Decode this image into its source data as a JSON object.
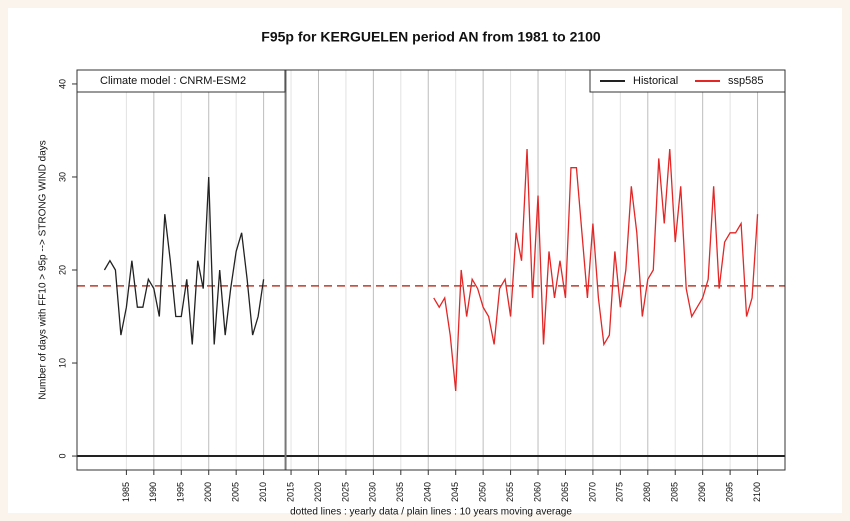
{
  "chart_data": {
    "type": "line",
    "title": "F95p for KERGUELEN period AN from 1981 to 2100",
    "annotation": "Climate model :  CNRM-ESM2",
    "x_label": "dotted lines : yearly data   /   plain lines : 10 years moving average",
    "y_label": "Number of days with FF10 > 95p --> STRONG WIND days",
    "xlim": [
      1976,
      2105
    ],
    "ylim": [
      -1.5,
      41.5
    ],
    "xticks": [
      1985,
      1990,
      1995,
      2000,
      2005,
      2010,
      2015,
      2020,
      2025,
      2030,
      2035,
      2040,
      2045,
      2050,
      2055,
      2060,
      2065,
      2070,
      2075,
      2080,
      2085,
      2090,
      2095,
      2100
    ],
    "yticks": [
      0,
      10,
      20,
      30,
      40
    ],
    "grid": true,
    "legend_position": "top-right",
    "reference_line": {
      "value": 18.3,
      "color": "#c0392b"
    },
    "vertical_line": 2014,
    "series": [
      {
        "name": "Historical",
        "color": "#222222",
        "x": [
          1981,
          1982,
          1983,
          1984,
          1985,
          1986,
          1987,
          1988,
          1989,
          1990,
          1991,
          1992,
          1993,
          1994,
          1995,
          1996,
          1997,
          1998,
          1999,
          2000,
          2001,
          2002,
          2003,
          2004,
          2005,
          2006,
          2007,
          2008,
          2009,
          2010
        ],
        "values": [
          20,
          21,
          20,
          13,
          16,
          21,
          16,
          16,
          19,
          18,
          15,
          26,
          21,
          15,
          15,
          19,
          12,
          21,
          18,
          30,
          12,
          20,
          13,
          18,
          22,
          24,
          19,
          13,
          15,
          19
        ]
      },
      {
        "name": "ssp585",
        "color": "#e32626",
        "x": [
          2041,
          2042,
          2043,
          2044,
          2045,
          2046,
          2047,
          2048,
          2049,
          2050,
          2051,
          2052,
          2053,
          2054,
          2055,
          2056,
          2057,
          2058,
          2059,
          2060,
          2061,
          2062,
          2063,
          2064,
          2065,
          2066,
          2067,
          2068,
          2069,
          2070,
          2071,
          2072,
          2073,
          2074,
          2075,
          2076,
          2077,
          2078,
          2079,
          2080,
          2081,
          2082,
          2083,
          2084,
          2085,
          2086,
          2087,
          2088,
          2089,
          2090,
          2091,
          2092,
          2093,
          2094,
          2095,
          2096,
          2097,
          2098,
          2099,
          2100
        ],
        "values": [
          17,
          16,
          17,
          13,
          7,
          20,
          15,
          19,
          18,
          16,
          15,
          12,
          18,
          19,
          15,
          24,
          21,
          33,
          17,
          28,
          12,
          22,
          17,
          21,
          17,
          31,
          31,
          24,
          17,
          25,
          17,
          12,
          13,
          22,
          16,
          20,
          29,
          24,
          15,
          19,
          20,
          32,
          25,
          33,
          23,
          29,
          18,
          15,
          16,
          17,
          19,
          29,
          18,
          23,
          24,
          24,
          25,
          15,
          17,
          26
        ]
      }
    ]
  }
}
